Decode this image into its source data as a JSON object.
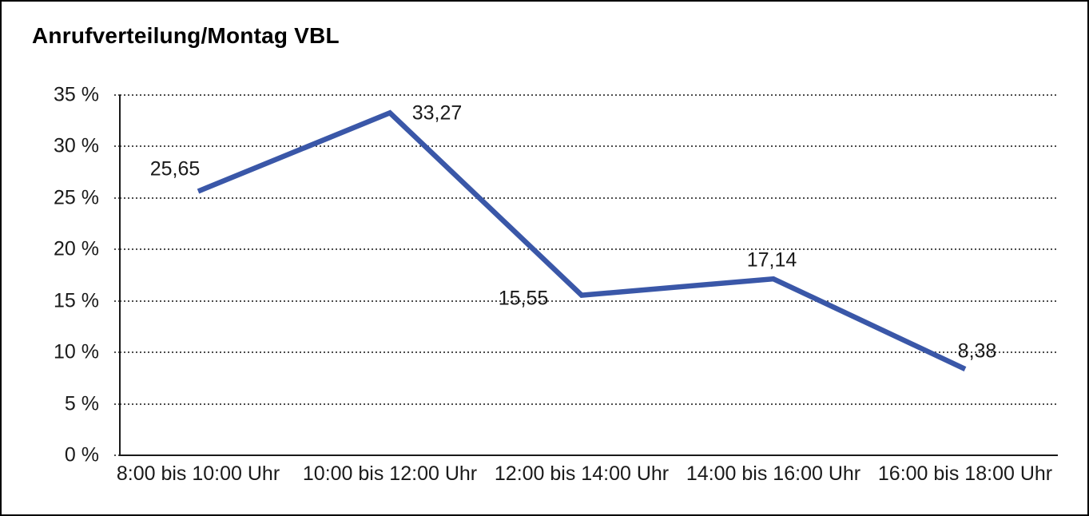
{
  "chart_data": {
    "type": "line",
    "title": "Anrufverteilung/Montag VBL",
    "categories": [
      "8:00 bis 10:00 Uhr",
      "10:00 bis 12:00 Uhr",
      "12:00 bis 14:00 Uhr",
      "14:00 bis 16:00 Uhr",
      "16:00 bis 18:00 Uhr"
    ],
    "values": [
      25.65,
      33.27,
      15.55,
      17.14,
      8.38
    ],
    "value_labels": [
      "25,65",
      "33,27",
      "15,55",
      "17,14",
      "8,38"
    ],
    "xlabel": "",
    "ylabel": "",
    "ylim": [
      0,
      35
    ],
    "ytick_values": [
      0,
      5,
      10,
      15,
      20,
      25,
      30,
      35
    ],
    "ytick_labels": [
      "0 %",
      "5 %",
      "10 %",
      "15 %",
      "20 %",
      "25 %",
      "30 %",
      "35 %"
    ],
    "grid": "horizontal-dotted",
    "legend": "none",
    "line_color": "#3A57A8",
    "axis_color": "#1a1a1a"
  }
}
